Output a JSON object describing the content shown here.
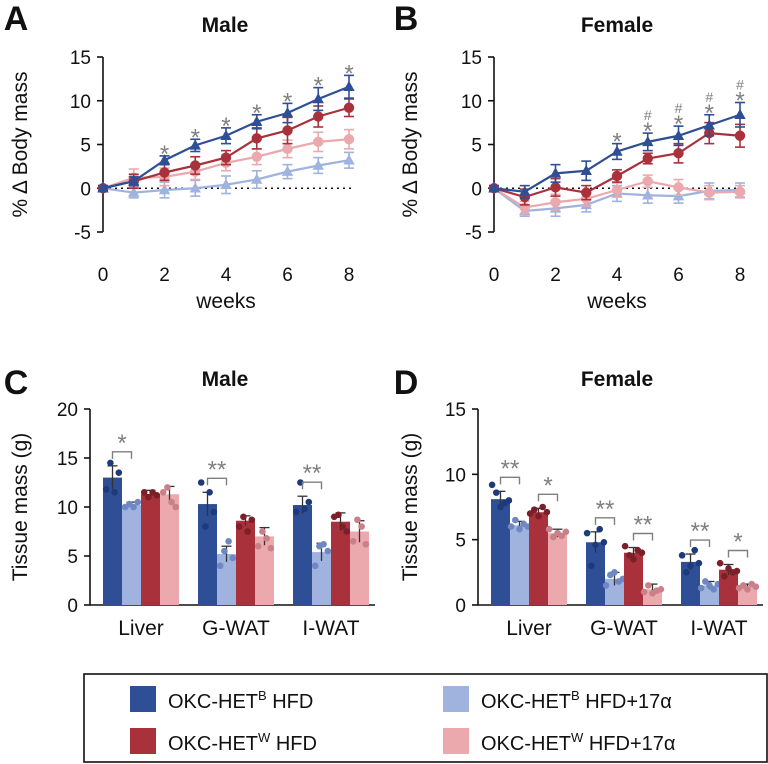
{
  "colors": {
    "het_b_hfd": "#2e4e96",
    "het_b_hfd_17a": "#9fb3de",
    "het_w_hfd": "#a8313b",
    "het_w_hfd_17a": "#eba9ad",
    "sig": "#7f7f7f"
  },
  "legend": {
    "items": [
      {
        "key": "het_b_hfd",
        "base": "OKC-HET",
        "sup": "B",
        "suffix": " HFD"
      },
      {
        "key": "het_w_hfd",
        "base": "OKC-HET",
        "sup": "W",
        "suffix": " HFD"
      },
      {
        "key": "het_b_hfd_17a",
        "base": "OKC-HET",
        "sup": "B",
        "suffix": " HFD+17α"
      },
      {
        "key": "het_w_hfd_17a",
        "base": "OKC-HET",
        "sup": "W",
        "suffix": " HFD+17α"
      }
    ]
  },
  "chart_data": [
    {
      "panel": "A",
      "type": "line",
      "title": "Male",
      "xlabel": "weeks",
      "ylabel": "% Δ Body mass",
      "xlim": [
        0,
        8
      ],
      "ylim": [
        -5,
        15
      ],
      "xticks": [
        0,
        2,
        4,
        6,
        8
      ],
      "yticks": [
        -5,
        0,
        5,
        10,
        15
      ],
      "x": [
        0,
        1,
        2,
        3,
        4,
        5,
        6,
        7,
        8
      ],
      "series": [
        {
          "key": "het_b_hfd_17a",
          "marker": "triangle",
          "values": [
            0,
            -0.5,
            -0.2,
            0,
            0.4,
            1.0,
            1.9,
            2.6,
            3.2
          ],
          "err": [
            0.3,
            0.6,
            0.9,
            0.9,
            1.0,
            1.0,
            0.8,
            0.9,
            0.9
          ]
        },
        {
          "key": "het_w_hfd_17a",
          "marker": "circle",
          "values": [
            0,
            1.2,
            1.3,
            1.9,
            2.9,
            3.6,
            4.5,
            5.3,
            5.6
          ],
          "err": [
            0.3,
            1.0,
            1.0,
            0.9,
            0.9,
            0.9,
            1.0,
            1.1,
            1.1
          ]
        },
        {
          "key": "het_w_hfd",
          "marker": "circle",
          "values": [
            0,
            0.8,
            1.8,
            2.6,
            3.5,
            5.7,
            6.6,
            8.2,
            9.2
          ],
          "err": [
            0.3,
            0.8,
            0.9,
            1.0,
            0.8,
            1.2,
            1.5,
            1.2,
            1.0
          ]
        },
        {
          "key": "het_b_hfd",
          "marker": "triangle",
          "values": [
            0,
            0.8,
            3.2,
            4.9,
            6.0,
            7.6,
            8.6,
            10.2,
            11.6
          ],
          "err": [
            0.3,
            0.5,
            0.5,
            0.7,
            0.9,
            0.8,
            1.1,
            1.3,
            1.3
          ]
        }
      ],
      "significance": [
        {
          "x": 2,
          "marks": [
            "*"
          ]
        },
        {
          "x": 3,
          "marks": [
            "*"
          ]
        },
        {
          "x": 4,
          "marks": [
            "*"
          ]
        },
        {
          "x": 5,
          "marks": [
            "*"
          ]
        },
        {
          "x": 6,
          "marks": [
            "*"
          ]
        },
        {
          "x": 7,
          "marks": [
            "*"
          ]
        },
        {
          "x": 8,
          "marks": [
            "*"
          ]
        }
      ]
    },
    {
      "panel": "B",
      "type": "line",
      "title": "Female",
      "xlabel": "weeks",
      "ylabel": "% Δ Body mass",
      "xlim": [
        0,
        8
      ],
      "ylim": [
        -5,
        15
      ],
      "xticks": [
        0,
        2,
        4,
        6,
        8
      ],
      "yticks": [
        -5,
        0,
        5,
        10,
        15
      ],
      "x": [
        0,
        1,
        2,
        3,
        4,
        5,
        6,
        7,
        8
      ],
      "series": [
        {
          "key": "het_b_hfd_17a",
          "marker": "triangle",
          "values": [
            0,
            -2.6,
            -2.3,
            -1.9,
            -0.6,
            -0.8,
            -0.9,
            -0.3,
            -0.2
          ],
          "err": [
            0.3,
            0.6,
            0.9,
            0.8,
            0.9,
            0.9,
            0.8,
            0.9,
            0.8
          ]
        },
        {
          "key": "het_w_hfd_17a",
          "marker": "circle",
          "values": [
            0,
            -2.2,
            -1.6,
            -1.2,
            -0.2,
            0.8,
            0.1,
            -0.5,
            -0.4
          ],
          "err": [
            0.3,
            0.7,
            0.9,
            0.8,
            0.8,
            0.7,
            0.9,
            0.8,
            0.7
          ]
        },
        {
          "key": "het_w_hfd",
          "marker": "circle",
          "values": [
            0,
            -1.0,
            0.1,
            -0.5,
            1.4,
            3.4,
            4.0,
            6.3,
            6.0
          ],
          "err": [
            0.3,
            0.9,
            1.0,
            0.8,
            0.7,
            0.6,
            1.1,
            1.2,
            1.3
          ]
        },
        {
          "key": "het_b_hfd",
          "marker": "triangle",
          "values": [
            0,
            -0.4,
            1.7,
            2.0,
            4.2,
            5.3,
            6.0,
            7.2,
            8.4
          ],
          "err": [
            0.3,
            0.7,
            1.0,
            1.1,
            0.9,
            1.0,
            1.1,
            1.2,
            1.4
          ]
        }
      ],
      "significance": [
        {
          "x": 4,
          "marks": [
            "*"
          ]
        },
        {
          "x": 5,
          "marks": [
            "*",
            "#"
          ]
        },
        {
          "x": 6,
          "marks": [
            "*",
            "#"
          ]
        },
        {
          "x": 7,
          "marks": [
            "*",
            "#"
          ]
        },
        {
          "x": 8,
          "marks": [
            "*",
            "#"
          ]
        }
      ]
    },
    {
      "panel": "C",
      "type": "bar",
      "title": "Male",
      "ylabel": "Tissue mass (g)",
      "ylim": [
        0,
        20
      ],
      "yticks": [
        0,
        5,
        10,
        15,
        20
      ],
      "categories": [
        "Liver",
        "G-WAT",
        "I-WAT"
      ],
      "series": [
        {
          "key": "het_b_hfd",
          "values": [
            13.0,
            10.3,
            10.2
          ],
          "err": [
            1.2,
            1.2,
            0.9
          ],
          "points": [
            [
              11.8,
              14.5,
              11.5,
              13.5
            ],
            [
              12.5,
              8.0,
              11.5,
              9.5
            ],
            [
              9.5,
              12.5,
              9.8,
              10.5
            ]
          ]
        },
        {
          "key": "het_b_hfd_17a",
          "values": [
            10.2,
            5.2,
            5.4
          ],
          "err": [
            0.3,
            0.8,
            0.9
          ],
          "points": [
            [
              10.0,
              10.3,
              10.0,
              10.5
            ],
            [
              4.0,
              5.5,
              6.5,
              4.8
            ],
            [
              4.0,
              6.0,
              6.2,
              5.5
            ]
          ]
        },
        {
          "key": "het_w_hfd",
          "values": [
            11.3,
            8.6,
            8.5
          ],
          "err": [
            0.4,
            0.5,
            0.9
          ],
          "points": [
            [
              11.5,
              11.0,
              11.5,
              11.2
            ],
            [
              8.0,
              9.0,
              7.5,
              8.7
            ],
            [
              9.0,
              9.2,
              8.0,
              7.5
            ]
          ]
        },
        {
          "key": "het_w_hfd_17a",
          "values": [
            11.3,
            7.0,
            7.5
          ],
          "err": [
            0.8,
            0.9,
            1.1
          ],
          "points": [
            [
              11.5,
              12.0,
              10.5,
              10.0
            ],
            [
              6.0,
              7.5,
              6.8,
              5.8
            ],
            [
              6.5,
              8.7,
              8.0,
              6.2
            ]
          ]
        }
      ],
      "significance": [
        {
          "category": "Liver",
          "from": "het_b_hfd",
          "to": "het_b_hfd_17a",
          "label": "*"
        },
        {
          "category": "G-WAT",
          "from": "het_b_hfd",
          "to": "het_b_hfd_17a",
          "label": "**"
        },
        {
          "category": "I-WAT",
          "from": "het_b_hfd",
          "to": "het_b_hfd_17a",
          "label": "**"
        }
      ]
    },
    {
      "panel": "D",
      "type": "bar",
      "title": "Female",
      "ylabel": "Tissue mass (g)",
      "ylim": [
        0,
        15
      ],
      "yticks": [
        0,
        5,
        10,
        15
      ],
      "categories": [
        "Liver",
        "G-WAT",
        "I-WAT"
      ],
      "series": [
        {
          "key": "het_b_hfd",
          "values": [
            8.1,
            4.8,
            3.3
          ],
          "err": [
            0.6,
            0.8,
            0.6
          ],
          "points": [
            [
              9.2,
              8.6,
              7.5,
              7.8,
              8.0
            ],
            [
              5.5,
              3.0,
              4.6,
              5.8,
              4.8
            ],
            [
              3.8,
              2.5,
              3.0,
              4.2,
              3.2
            ]
          ]
        },
        {
          "key": "het_b_hfd_17a",
          "values": [
            6.1,
            2.0,
            1.5
          ],
          "err": [
            0.3,
            0.5,
            0.3
          ],
          "points": [
            [
              6.0,
              6.5,
              5.8,
              6.2,
              6.0
            ],
            [
              1.5,
              2.3,
              2.5,
              1.8,
              2.0
            ],
            [
              1.3,
              1.8,
              1.5,
              1.2,
              1.6
            ]
          ]
        },
        {
          "key": "het_w_hfd",
          "values": [
            7.1,
            4.0,
            2.7
          ],
          "err": [
            0.3,
            0.4,
            0.4
          ],
          "points": [
            [
              7.0,
              7.3,
              6.8,
              7.5,
              7.1
            ],
            [
              4.5,
              3.8,
              3.5,
              4.2,
              4.0
            ],
            [
              3.2,
              2.2,
              2.8,
              2.5,
              2.6
            ]
          ]
        },
        {
          "key": "het_w_hfd_17a",
          "values": [
            5.5,
            1.2,
            1.4
          ],
          "err": [
            0.3,
            0.4,
            0.2
          ],
          "points": [
            [
              5.8,
              5.2,
              5.5,
              5.3,
              5.6
            ],
            [
              1.0,
              1.5,
              0.9,
              1.1,
              1.2
            ],
            [
              1.3,
              1.5,
              1.2,
              1.6,
              1.4
            ]
          ]
        }
      ],
      "significance": [
        {
          "category": "Liver",
          "from": "het_b_hfd",
          "to": "het_b_hfd_17a",
          "label": "**"
        },
        {
          "category": "Liver",
          "from": "het_w_hfd",
          "to": "het_w_hfd_17a",
          "label": "*"
        },
        {
          "category": "G-WAT",
          "from": "het_b_hfd",
          "to": "het_b_hfd_17a",
          "label": "**"
        },
        {
          "category": "G-WAT",
          "from": "het_w_hfd",
          "to": "het_w_hfd_17a",
          "label": "**"
        },
        {
          "category": "I-WAT",
          "from": "het_b_hfd",
          "to": "het_b_hfd_17a",
          "label": "**"
        },
        {
          "category": "I-WAT",
          "from": "het_w_hfd",
          "to": "het_w_hfd_17a",
          "label": "*"
        }
      ]
    }
  ]
}
